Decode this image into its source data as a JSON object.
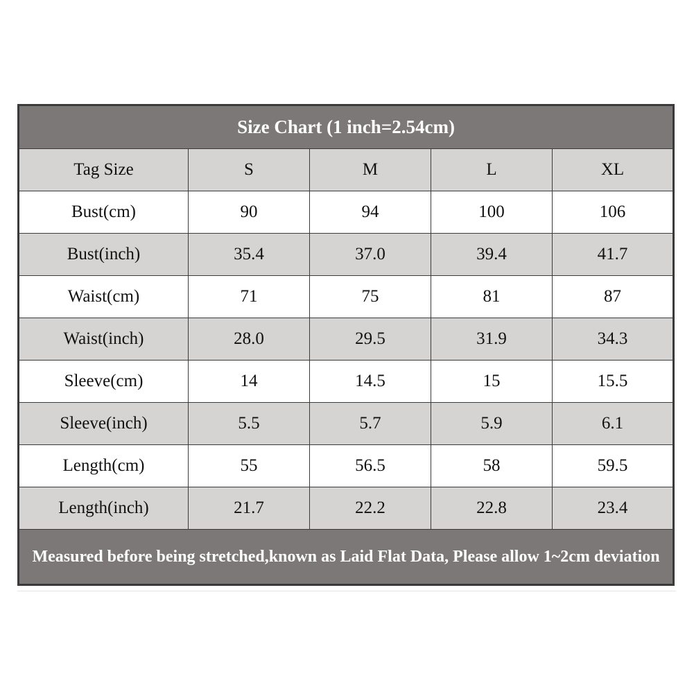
{
  "title": "Size Chart (1 inch=2.54cm)",
  "header": {
    "label": "Tag Size",
    "sizes": [
      "S",
      "M",
      "L",
      "XL"
    ]
  },
  "rows": [
    {
      "label": "Bust(cm)",
      "values": [
        "90",
        "94",
        "100",
        "106"
      ]
    },
    {
      "label": "Bust(inch)",
      "values": [
        "35.4",
        "37.0",
        "39.4",
        "41.7"
      ]
    },
    {
      "label": "Waist(cm)",
      "values": [
        "71",
        "75",
        "81",
        "87"
      ]
    },
    {
      "label": "Waist(inch)",
      "values": [
        "28.0",
        "29.5",
        "31.9",
        "34.3"
      ]
    },
    {
      "label": "Sleeve(cm)",
      "values": [
        "14",
        "14.5",
        "15",
        "15.5"
      ]
    },
    {
      "label": "Sleeve(inch)",
      "values": [
        "5.5",
        "5.7",
        "5.9",
        "6.1"
      ]
    },
    {
      "label": "Length(cm)",
      "values": [
        "55",
        "56.5",
        "58",
        "59.5"
      ]
    },
    {
      "label": "Length(inch)",
      "values": [
        "21.7",
        "22.2",
        "22.8",
        "23.4"
      ]
    }
  ],
  "note": "Measured before being stretched,known as Laid Flat Data, Please allow 1~2cm deviation",
  "colors": {
    "title_bg": "#7b7877",
    "header_bg": "#d6d4d3",
    "row_gray_bg": "#d6d4d3",
    "row_light_bg": "#ffffff",
    "border": "#3a3a3a"
  }
}
